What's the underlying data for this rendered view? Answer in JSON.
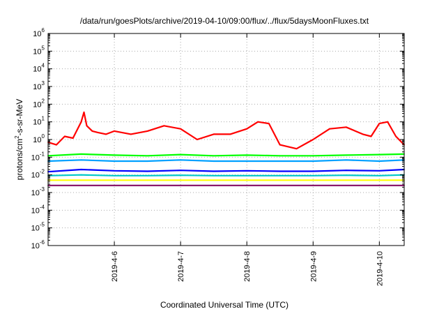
{
  "chart_data": {
    "type": "line",
    "title": "/data/run/goesPlots/archive/2019-04-10/09:00/flux/../flux/5daysMoonFluxes.txt",
    "xlabel": "Coordinated Universal Time (UTC)",
    "ylabel": {
      "prefix": "protons/cm",
      "sup": "2",
      "suffix": "-s-sr-MeV"
    },
    "y_scale": "log",
    "ylim": [
      1e-06,
      1000000.0
    ],
    "xlim": [
      "2019-04-05 00:00",
      "2019-04-10 09:00"
    ],
    "y_ticks": [
      {
        "base": "10",
        "exp": "-6",
        "value": 1e-06
      },
      {
        "base": "10",
        "exp": "-5",
        "value": 1e-05
      },
      {
        "base": "10",
        "exp": "-4",
        "value": 0.0001
      },
      {
        "base": "10",
        "exp": "-3",
        "value": 0.001
      },
      {
        "base": "10",
        "exp": "-2",
        "value": 0.01
      },
      {
        "base": "10",
        "exp": "-1",
        "value": 0.1
      },
      {
        "base": "10",
        "exp": "0",
        "value": 1
      },
      {
        "base": "10",
        "exp": "1",
        "value": 10
      },
      {
        "base": "10",
        "exp": "2",
        "value": 100
      },
      {
        "base": "10",
        "exp": "3",
        "value": 1000
      },
      {
        "base": "10",
        "exp": "4",
        "value": 10000
      },
      {
        "base": "10",
        "exp": "5",
        "value": 100000
      },
      {
        "base": "10",
        "exp": "6",
        "value": 1000000
      }
    ],
    "x_ticks": [
      {
        "label": "2019-4-6",
        "time": "2019-04-06 00:00"
      },
      {
        "label": "2019-4-7",
        "time": "2019-04-07 00:00"
      },
      {
        "label": "2019-4-8",
        "time": "2019-04-08 00:00"
      },
      {
        "label": "2019-4-9",
        "time": "2019-04-09 00:00"
      },
      {
        "label": "2019-4-10",
        "time": "2019-04-10 00:00"
      }
    ],
    "grid": true,
    "series": [
      {
        "color": "#ff0000",
        "x": [
          "2019-04-05 00:00",
          "2019-04-05 03:00",
          "2019-04-05 06:00",
          "2019-04-05 09:00",
          "2019-04-05 12:00",
          "2019-04-05 13:00",
          "2019-04-05 14:00",
          "2019-04-05 16:00",
          "2019-04-05 18:00",
          "2019-04-05 21:00",
          "2019-04-06 00:00",
          "2019-04-06 06:00",
          "2019-04-06 12:00",
          "2019-04-06 18:00",
          "2019-04-07 00:00",
          "2019-04-07 06:00",
          "2019-04-07 12:00",
          "2019-04-07 18:00",
          "2019-04-08 00:00",
          "2019-04-08 04:00",
          "2019-04-08 08:00",
          "2019-04-08 12:00",
          "2019-04-08 18:00",
          "2019-04-09 00:00",
          "2019-04-09 06:00",
          "2019-04-09 12:00",
          "2019-04-09 18:00",
          "2019-04-09 21:00",
          "2019-04-10 00:00",
          "2019-04-10 03:00",
          "2019-04-10 06:00",
          "2019-04-10 09:00"
        ],
        "y": [
          0.7,
          0.5,
          1.5,
          1.2,
          10,
          35,
          6,
          3,
          2.5,
          2,
          3,
          2,
          3,
          6,
          4,
          1,
          2,
          2,
          4,
          10,
          8,
          0.5,
          0.3,
          1,
          4,
          5,
          2,
          1.5,
          8,
          10,
          1.5,
          0.5
        ]
      },
      {
        "color": "#00ff00",
        "x": [
          "2019-04-05 00:00",
          "2019-04-05 12:00",
          "2019-04-06 00:00",
          "2019-04-06 12:00",
          "2019-04-07 00:00",
          "2019-04-07 12:00",
          "2019-04-08 00:00",
          "2019-04-08 12:00",
          "2019-04-09 00:00",
          "2019-04-09 12:00",
          "2019-04-10 00:00",
          "2019-04-10 09:00"
        ],
        "y": [
          0.12,
          0.15,
          0.13,
          0.12,
          0.14,
          0.12,
          0.13,
          0.12,
          0.12,
          0.13,
          0.14,
          0.15
        ]
      },
      {
        "color": "#00a0ff",
        "x": [
          "2019-04-05 00:00",
          "2019-04-05 12:00",
          "2019-04-06 00:00",
          "2019-04-06 12:00",
          "2019-04-07 00:00",
          "2019-04-07 12:00",
          "2019-04-08 00:00",
          "2019-04-08 12:00",
          "2019-04-09 00:00",
          "2019-04-09 12:00",
          "2019-04-10 00:00",
          "2019-04-10 09:00"
        ],
        "y": [
          0.06,
          0.07,
          0.06,
          0.06,
          0.07,
          0.06,
          0.06,
          0.06,
          0.06,
          0.07,
          0.06,
          0.07
        ]
      },
      {
        "color": "#0000ff",
        "x": [
          "2019-04-05 00:00",
          "2019-04-05 12:00",
          "2019-04-06 00:00",
          "2019-04-06 12:00",
          "2019-04-07 00:00",
          "2019-04-07 12:00",
          "2019-04-08 00:00",
          "2019-04-08 12:00",
          "2019-04-09 00:00",
          "2019-04-09 12:00",
          "2019-04-10 00:00",
          "2019-04-10 09:00"
        ],
        "y": [
          0.015,
          0.02,
          0.017,
          0.016,
          0.018,
          0.016,
          0.017,
          0.016,
          0.016,
          0.018,
          0.017,
          0.02
        ]
      },
      {
        "color": "#00c8c8",
        "x": [
          "2019-04-05 00:00",
          "2019-04-05 12:00",
          "2019-04-06 00:00",
          "2019-04-06 12:00",
          "2019-04-07 00:00",
          "2019-04-07 12:00",
          "2019-04-08 00:00",
          "2019-04-08 12:00",
          "2019-04-09 00:00",
          "2019-04-09 12:00",
          "2019-04-10 00:00",
          "2019-04-10 09:00"
        ],
        "y": [
          0.009,
          0.01,
          0.009,
          0.009,
          0.0095,
          0.009,
          0.009,
          0.009,
          0.009,
          0.0095,
          0.009,
          0.01
        ]
      },
      {
        "color": "#ffff00",
        "x": [
          "2019-04-05 00:00",
          "2019-04-05 12:00",
          "2019-04-06 00:00",
          "2019-04-06 12:00",
          "2019-04-07 00:00",
          "2019-04-07 12:00",
          "2019-04-08 00:00",
          "2019-04-08 12:00",
          "2019-04-09 00:00",
          "2019-04-09 12:00",
          "2019-04-10 00:00",
          "2019-04-10 09:00"
        ],
        "y": [
          0.005,
          0.005,
          0.005,
          0.005,
          0.005,
          0.005,
          0.005,
          0.005,
          0.005,
          0.005,
          0.005,
          0.005
        ]
      },
      {
        "color": "#8b1a6b",
        "x": [
          "2019-04-05 00:00",
          "2019-04-05 12:00",
          "2019-04-06 00:00",
          "2019-04-06 12:00",
          "2019-04-07 00:00",
          "2019-04-07 12:00",
          "2019-04-08 00:00",
          "2019-04-08 12:00",
          "2019-04-09 00:00",
          "2019-04-09 12:00",
          "2019-04-10 00:00",
          "2019-04-10 09:00"
        ],
        "y": [
          0.0025,
          0.0025,
          0.0025,
          0.0025,
          0.0025,
          0.0025,
          0.0025,
          0.0025,
          0.0025,
          0.0025,
          0.0025,
          0.0025
        ]
      }
    ]
  }
}
